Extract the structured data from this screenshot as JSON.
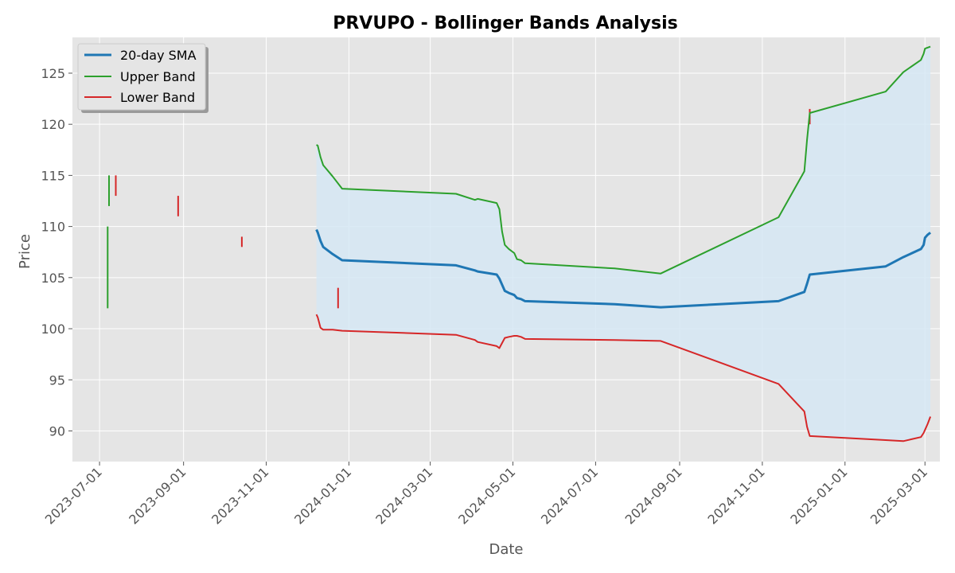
{
  "chart_data": {
    "type": "line",
    "title": "PRVUPO - Bollinger Bands Analysis",
    "xlabel": "Date",
    "ylabel": "Price",
    "xlim": [
      "2023-06-11",
      "2025-03-12"
    ],
    "ylim": [
      87,
      128.5
    ],
    "x_ticks": [
      "2023-07-01",
      "2023-09-01",
      "2023-11-01",
      "2024-01-01",
      "2024-03-01",
      "2024-05-01",
      "2024-07-01",
      "2024-09-01",
      "2024-11-01",
      "2025-01-01",
      "2025-03-01"
    ],
    "y_ticks": [
      90,
      95,
      100,
      105,
      110,
      115,
      120,
      125
    ],
    "grid": true,
    "legend_position": "top-left",
    "colors": {
      "sma": "#1f77b4",
      "upper": "#2ca02c",
      "lower": "#d62728",
      "band_fill": "#d6e8f5",
      "background": "#e5e5e5",
      "grid": "#ffffff"
    },
    "x": [
      "2023-12-08",
      "2023-12-09",
      "2023-12-11",
      "2023-12-13",
      "2023-12-20",
      "2023-12-27",
      "2024-03-20",
      "2024-04-03",
      "2024-04-05",
      "2024-04-19",
      "2024-04-21",
      "2024-04-23",
      "2024-04-25",
      "2024-04-28",
      "2024-05-02",
      "2024-05-04",
      "2024-05-07",
      "2024-05-10",
      "2024-07-15",
      "2024-08-18",
      "2024-11-13",
      "2024-12-02",
      "2024-12-04",
      "2024-12-06",
      "2025-01-31",
      "2025-02-13",
      "2025-02-26",
      "2025-02-28",
      "2025-03-01",
      "2025-03-03",
      "2025-03-05"
    ],
    "series": [
      {
        "name": "20-day SMA",
        "values": [
          109.7,
          109.4,
          108.6,
          108.0,
          107.3,
          106.7,
          106.2,
          105.7,
          105.6,
          105.3,
          104.9,
          104.3,
          103.7,
          103.5,
          103.3,
          103.0,
          102.9,
          102.7,
          102.4,
          102.1,
          102.7,
          103.6,
          104.4,
          105.3,
          106.1,
          107.0,
          107.8,
          108.2,
          108.9,
          109.2,
          109.4
        ]
      },
      {
        "name": "Upper Band",
        "values": [
          118.0,
          117.9,
          116.8,
          116.0,
          114.9,
          113.7,
          113.2,
          112.6,
          112.7,
          112.3,
          111.7,
          109.5,
          108.2,
          107.8,
          107.4,
          106.8,
          106.7,
          106.4,
          105.9,
          105.4,
          110.9,
          115.4,
          118.5,
          121.1,
          123.2,
          125.1,
          126.3,
          126.9,
          127.4,
          127.5,
          127.6
        ]
      },
      {
        "name": "Lower Band",
        "values": [
          101.4,
          101.1,
          100.1,
          99.9,
          99.9,
          99.8,
          99.4,
          98.9,
          98.7,
          98.3,
          98.1,
          98.6,
          99.1,
          99.2,
          99.3,
          99.3,
          99.2,
          99.0,
          98.9,
          98.8,
          94.6,
          91.9,
          90.4,
          89.5,
          89.1,
          89.0,
          89.4,
          89.8,
          90.1,
          90.7,
          91.4
        ]
      }
    ],
    "candles": [
      {
        "date": "2023-07-07",
        "low": 102,
        "high": 110,
        "color": "#2ca02c"
      },
      {
        "date": "2023-07-08",
        "low": 112,
        "high": 115,
        "color": "#2ca02c"
      },
      {
        "date": "2023-07-13",
        "low": 113,
        "high": 115,
        "color": "#d62728"
      },
      {
        "date": "2023-08-28",
        "low": 111,
        "high": 113,
        "color": "#d62728"
      },
      {
        "date": "2023-10-14",
        "low": 108,
        "high": 109,
        "color": "#d62728"
      },
      {
        "date": "2023-12-24",
        "low": 102,
        "high": 104,
        "color": "#d62728"
      },
      {
        "date": "2024-12-06",
        "low": 120,
        "high": 121.5,
        "color": "#d62728"
      }
    ]
  }
}
